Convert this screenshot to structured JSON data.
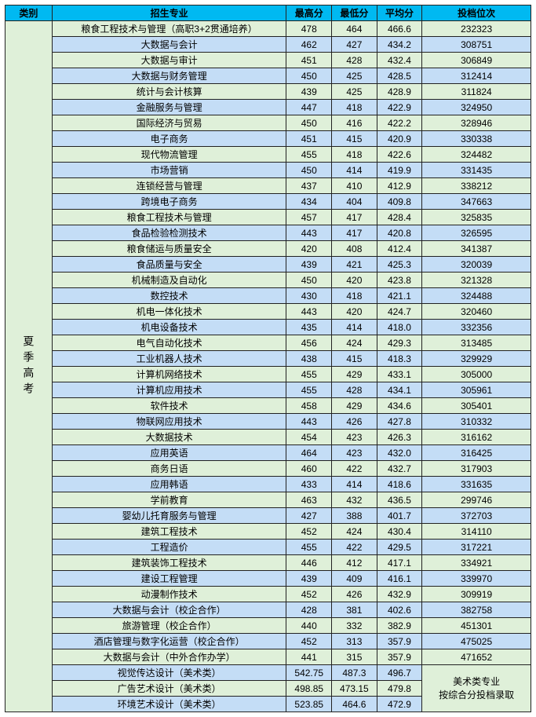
{
  "colors": {
    "header_bg": "#00b9f1",
    "row_even_bg": "#dff0d9",
    "row_odd_bg": "#c4ddf6",
    "border": "#222222"
  },
  "headers": {
    "category": "类别",
    "major": "招生专业",
    "max": "最高分",
    "min": "最低分",
    "avg": "平均分",
    "rank": "投档位次"
  },
  "category_label": "夏季高考",
  "art_note_line1": "美术类专业",
  "art_note_line2": "按综合分投档录取",
  "rows": [
    {
      "major": "粮食工程技术与管理（高职3+2贯通培养）",
      "max": "478",
      "min": "464",
      "avg": "466.6",
      "rank": "232323"
    },
    {
      "major": "大数据与会计",
      "max": "462",
      "min": "427",
      "avg": "434.2",
      "rank": "308751"
    },
    {
      "major": "大数据与审计",
      "max": "451",
      "min": "428",
      "avg": "432.4",
      "rank": "306849"
    },
    {
      "major": "大数据与财务管理",
      "max": "450",
      "min": "425",
      "avg": "428.5",
      "rank": "312414"
    },
    {
      "major": "统计与会计核算",
      "max": "439",
      "min": "425",
      "avg": "428.9",
      "rank": "311824"
    },
    {
      "major": "金融服务与管理",
      "max": "447",
      "min": "418",
      "avg": "422.9",
      "rank": "324950"
    },
    {
      "major": "国际经济与贸易",
      "max": "450",
      "min": "416",
      "avg": "422.2",
      "rank": "328946"
    },
    {
      "major": "电子商务",
      "max": "451",
      "min": "415",
      "avg": "420.9",
      "rank": "330338"
    },
    {
      "major": "现代物流管理",
      "max": "455",
      "min": "418",
      "avg": "422.6",
      "rank": "324482"
    },
    {
      "major": "市场营销",
      "max": "450",
      "min": "414",
      "avg": "419.9",
      "rank": "331435"
    },
    {
      "major": "连锁经营与管理",
      "max": "437",
      "min": "410",
      "avg": "412.9",
      "rank": "338212"
    },
    {
      "major": "跨境电子商务",
      "max": "434",
      "min": "404",
      "avg": "409.8",
      "rank": "347663"
    },
    {
      "major": "粮食工程技术与管理",
      "max": "457",
      "min": "417",
      "avg": "428.4",
      "rank": "325835"
    },
    {
      "major": "食品检验检测技术",
      "max": "443",
      "min": "417",
      "avg": "420.8",
      "rank": "326595"
    },
    {
      "major": "粮食储运与质量安全",
      "max": "420",
      "min": "408",
      "avg": "412.4",
      "rank": "341387"
    },
    {
      "major": "食品质量与安全",
      "max": "439",
      "min": "421",
      "avg": "425.3",
      "rank": "320039"
    },
    {
      "major": "机械制造及自动化",
      "max": "450",
      "min": "420",
      "avg": "423.8",
      "rank": "321328"
    },
    {
      "major": "数控技术",
      "max": "430",
      "min": "418",
      "avg": "421.1",
      "rank": "324488"
    },
    {
      "major": "机电一体化技术",
      "max": "443",
      "min": "420",
      "avg": "424.7",
      "rank": "320460"
    },
    {
      "major": "机电设备技术",
      "max": "435",
      "min": "414",
      "avg": "418.0",
      "rank": "332356"
    },
    {
      "major": "电气自动化技术",
      "max": "456",
      "min": "424",
      "avg": "429.3",
      "rank": "313485"
    },
    {
      "major": "工业机器人技术",
      "max": "438",
      "min": "415",
      "avg": "418.3",
      "rank": "329929"
    },
    {
      "major": "计算机网络技术",
      "max": "455",
      "min": "429",
      "avg": "433.1",
      "rank": "305000"
    },
    {
      "major": "计算机应用技术",
      "max": "455",
      "min": "428",
      "avg": "434.1",
      "rank": "305961"
    },
    {
      "major": "软件技术",
      "max": "458",
      "min": "429",
      "avg": "434.6",
      "rank": "305401"
    },
    {
      "major": "物联网应用技术",
      "max": "443",
      "min": "426",
      "avg": "427.8",
      "rank": "310332"
    },
    {
      "major": "大数据技术",
      "max": "454",
      "min": "423",
      "avg": "426.3",
      "rank": "316162"
    },
    {
      "major": "应用英语",
      "max": "464",
      "min": "423",
      "avg": "432.0",
      "rank": "316425"
    },
    {
      "major": "商务日语",
      "max": "460",
      "min": "422",
      "avg": "432.7",
      "rank": "317903"
    },
    {
      "major": "应用韩语",
      "max": "433",
      "min": "414",
      "avg": "418.6",
      "rank": "331635"
    },
    {
      "major": "学前教育",
      "max": "463",
      "min": "432",
      "avg": "436.5",
      "rank": "299746"
    },
    {
      "major": "婴幼儿托育服务与管理",
      "max": "427",
      "min": "388",
      "avg": "401.7",
      "rank": "372703"
    },
    {
      "major": "建筑工程技术",
      "max": "452",
      "min": "424",
      "avg": "430.4",
      "rank": "314110"
    },
    {
      "major": "工程造价",
      "max": "455",
      "min": "422",
      "avg": "429.5",
      "rank": "317221"
    },
    {
      "major": "建筑装饰工程技术",
      "max": "446",
      "min": "412",
      "avg": "417.1",
      "rank": "334921"
    },
    {
      "major": "建设工程管理",
      "max": "439",
      "min": "409",
      "avg": "416.1",
      "rank": "339970"
    },
    {
      "major": "动漫制作技术",
      "max": "452",
      "min": "426",
      "avg": "432.9",
      "rank": "309919"
    },
    {
      "major": "大数据与会计（校企合作）",
      "max": "428",
      "min": "381",
      "avg": "402.6",
      "rank": "382758"
    },
    {
      "major": "旅游管理（校企合作）",
      "max": "440",
      "min": "332",
      "avg": "382.9",
      "rank": "451301"
    },
    {
      "major": "酒店管理与数字化运营（校企合作）",
      "max": "452",
      "min": "313",
      "avg": "357.9",
      "rank": "475025"
    },
    {
      "major": "大数据与会计（中外合作办学）",
      "max": "441",
      "min": "315",
      "avg": "357.9",
      "rank": "471652"
    },
    {
      "major": "视觉传达设计（美术类）",
      "max": "542.75",
      "min": "487.3",
      "avg": "496.7",
      "rank": ""
    },
    {
      "major": "广告艺术设计（美术类）",
      "max": "498.85",
      "min": "473.15",
      "avg": "479.8",
      "rank": ""
    },
    {
      "major": "环境艺术设计（美术类）",
      "max": "523.85",
      "min": "464.6",
      "avg": "472.9",
      "rank": ""
    }
  ]
}
